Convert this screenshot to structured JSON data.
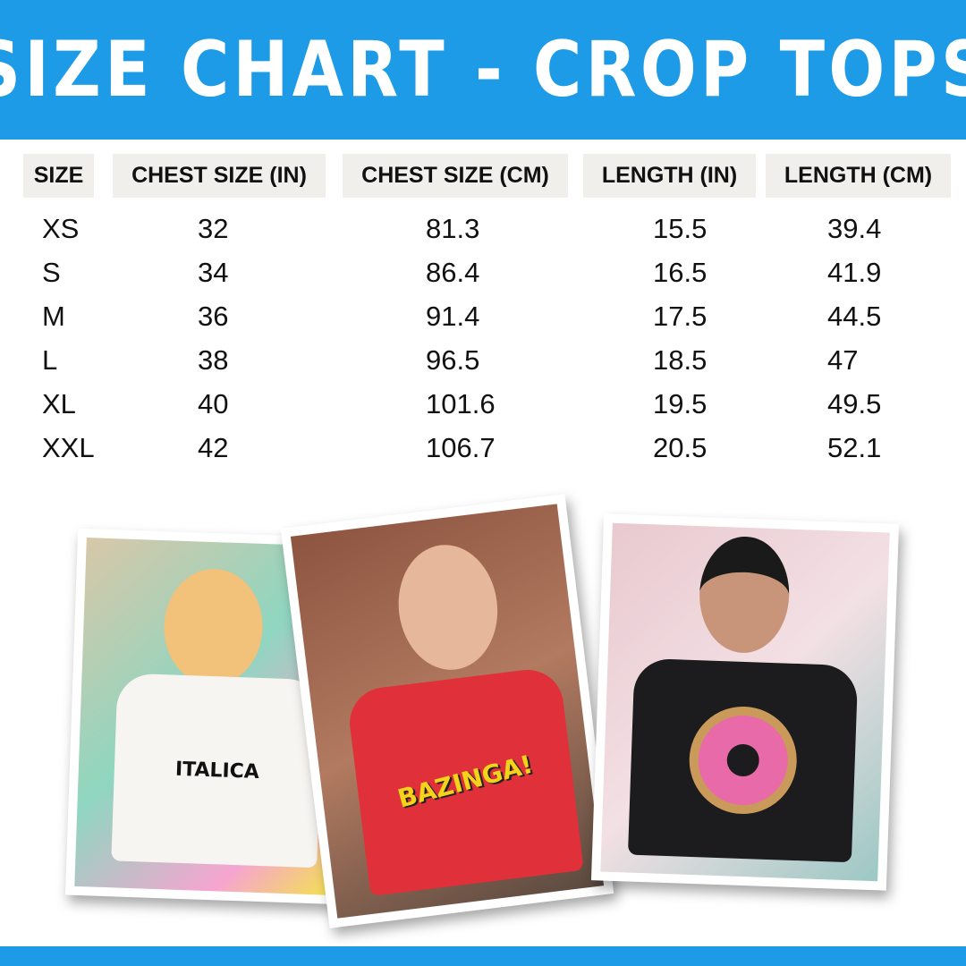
{
  "title": "SIZE CHART - CROP TOPS",
  "table": {
    "headers": [
      "SIZE",
      "CHEST SIZE (IN)",
      "CHEST SIZE (CM)",
      "LENGTH (IN)",
      "LENGTH (CM)"
    ],
    "rows": [
      [
        "XS",
        "32",
        "81.3",
        "15.5",
        "39.4"
      ],
      [
        "S",
        "34",
        "86.4",
        "16.5",
        "41.9"
      ],
      [
        "M",
        "36",
        "91.4",
        "17.5",
        "44.5"
      ],
      [
        "L",
        "38",
        "96.5",
        "18.5",
        "47"
      ],
      [
        "XL",
        "40",
        "101.6",
        "19.5",
        "49.5"
      ],
      [
        "XXL",
        "42",
        "106.7",
        "20.5",
        "52.1"
      ]
    ]
  },
  "photos": [
    {
      "shirt_color": "#f7f5f2",
      "print": "ITALICA"
    },
    {
      "shirt_color": "#e0303a",
      "print": "BAZINGA!"
    },
    {
      "shirt_color": "#1c1c1e",
      "print": "donut"
    }
  ],
  "colors": {
    "brand": "#1e9be6",
    "header_bg": "#f0efeb"
  }
}
